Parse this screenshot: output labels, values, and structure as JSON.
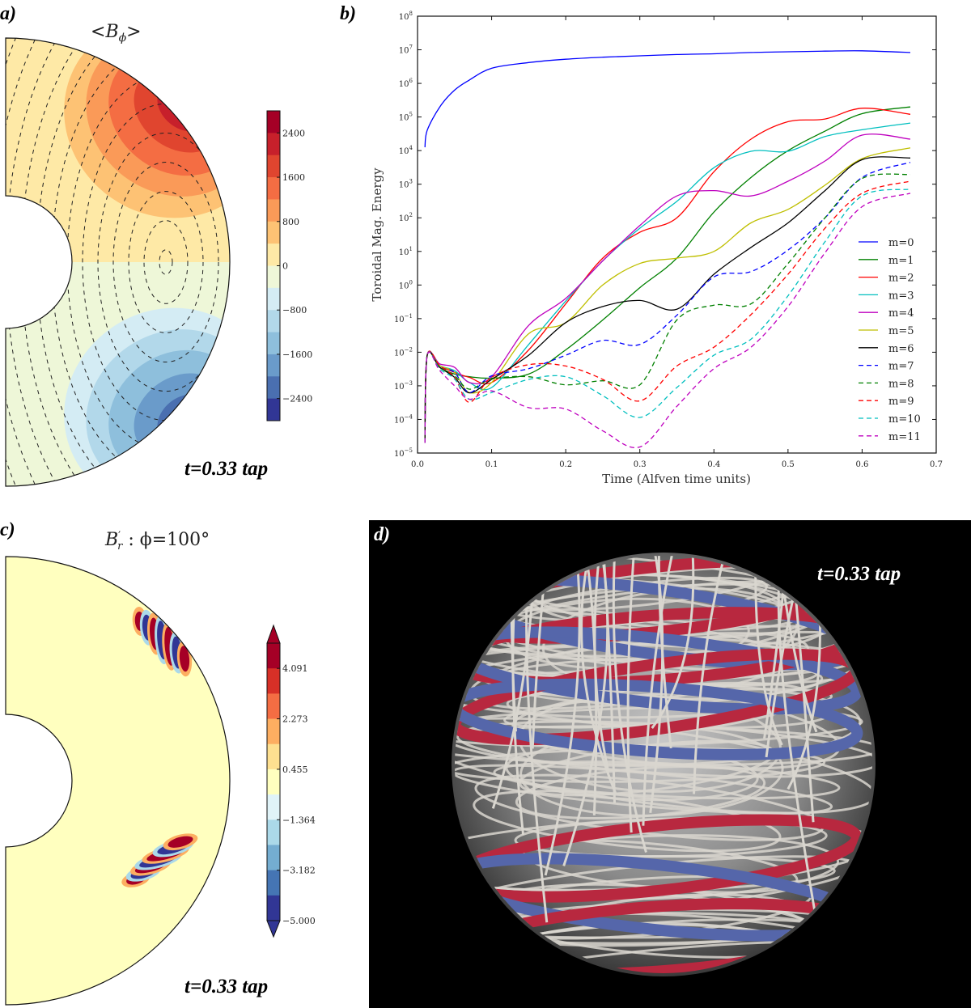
{
  "panel_a": {
    "label": "a)",
    "title": {
      "open": "<",
      "symbol": "B",
      "subscript": "ϕ",
      "close": ">"
    },
    "time_label": "t=0.33 tap",
    "colorbar": {
      "ticks": [
        "2400",
        "1600",
        "800",
        "0",
        "−800",
        "−1600",
        "−2400"
      ],
      "range": [
        -2800,
        2800
      ],
      "levels": 14
    }
  },
  "panel_c": {
    "label": "c)",
    "title": {
      "symbol": "B",
      "superscript": "′",
      "subscript": "r",
      "text": " : ϕ=100°"
    },
    "time_label": "t=0.33 tap",
    "colorbar": {
      "ticks": [
        "4.091",
        "2.273",
        "0.455",
        "−1.364",
        "−3.182",
        "−5.000"
      ],
      "range": [
        -5.0,
        5.0
      ],
      "levels": 11,
      "extend": "both"
    }
  },
  "panel_d": {
    "label": "d)",
    "time_label": "t=0.33 tap",
    "colors": {
      "positive": "#b8283f",
      "negative": "#5566aa",
      "field_lines": "#d9d6cf",
      "background": "#000000"
    }
  },
  "chart_data": {
    "panel_label": "b)",
    "type": "line",
    "title": "",
    "xlabel": "Time (Alfven time units)",
    "ylabel": "Toroidal Mag. Energy",
    "xlim": [
      0.0,
      0.7
    ],
    "yscale": "log",
    "ylim_log10": [
      -5,
      8
    ],
    "xticks": [
      "0.0",
      "0.1",
      "0.2",
      "0.3",
      "0.4",
      "0.5",
      "0.6",
      "0.7"
    ],
    "ytick_exponents": [
      "−5",
      "−4",
      "−3",
      "−2",
      "−1",
      "0",
      "1",
      "2",
      "3",
      "4",
      "5",
      "6",
      "7",
      "8"
    ],
    "ytick_base": "10",
    "legend_position": "lower-right",
    "grid": false,
    "t": [
      0.01,
      0.013,
      0.03,
      0.05,
      0.07,
      0.1,
      0.15,
      0.2,
      0.25,
      0.3,
      0.35,
      0.4,
      0.45,
      0.5,
      0.55,
      0.6,
      0.665
    ],
    "series": [
      {
        "name": "m=0",
        "color": "#0000ff",
        "dash": false,
        "log10_values": [
          4.1,
          4.6,
          5.3,
          5.8,
          6.1,
          6.45,
          6.62,
          6.72,
          6.78,
          6.82,
          6.86,
          6.88,
          6.92,
          6.94,
          6.96,
          6.97,
          6.92
        ]
      },
      {
        "name": "m=1",
        "color": "#008000",
        "dash": false,
        "log10_values": [
          -4.7,
          -2.1,
          -2.45,
          -2.65,
          -2.73,
          -2.77,
          -2.65,
          -1.93,
          -1.04,
          -0.08,
          0.8,
          2.17,
          3.2,
          4.0,
          4.58,
          5.1,
          5.3
        ]
      },
      {
        "name": "m=2",
        "color": "#ff0000",
        "dash": false,
        "log10_values": [
          -4.7,
          -2.1,
          -2.4,
          -2.6,
          -2.75,
          -2.9,
          -1.93,
          -0.56,
          0.8,
          1.57,
          2.0,
          3.37,
          4.34,
          4.86,
          4.94,
          5.26,
          5.08
        ]
      },
      {
        "name": "m=3",
        "color": "#00bfbf",
        "dash": false,
        "log10_values": [
          -4.7,
          -2.1,
          -2.4,
          -2.55,
          -2.9,
          -3.05,
          -1.77,
          -0.48,
          0.72,
          1.69,
          2.49,
          3.49,
          3.98,
          3.98,
          4.42,
          4.62,
          4.82
        ]
      },
      {
        "name": "m=4",
        "color": "#bf00bf",
        "dash": false,
        "log10_values": [
          -4.7,
          -2.1,
          -2.35,
          -2.45,
          -2.9,
          -2.73,
          -1.2,
          -0.4,
          0.72,
          1.77,
          2.65,
          2.81,
          2.65,
          3.09,
          3.69,
          4.46,
          4.34
        ]
      },
      {
        "name": "m=5",
        "color": "#bfbf00",
        "dash": false,
        "log10_values": [
          -4.7,
          -2.1,
          -2.4,
          -2.6,
          -3.2,
          -2.9,
          -1.45,
          -1.12,
          0.0,
          0.64,
          0.8,
          1.0,
          1.85,
          2.25,
          2.97,
          3.76,
          4.08
        ]
      },
      {
        "name": "m=6",
        "color": "#000000",
        "dash": false,
        "log10_values": [
          -4.7,
          -2.1,
          -2.45,
          -2.75,
          -3.21,
          -2.81,
          -2.09,
          -1.12,
          -0.64,
          -0.46,
          -0.72,
          0.32,
          1.12,
          1.85,
          2.81,
          3.73,
          3.78
        ]
      },
      {
        "name": "m=7",
        "color": "#0000ff",
        "dash": true,
        "log10_values": [
          -4.7,
          -2.1,
          -2.45,
          -2.6,
          -3.2,
          -2.7,
          -2.49,
          -2.09,
          -1.65,
          -1.77,
          -0.9,
          0.24,
          0.4,
          1.04,
          2.0,
          3.2,
          3.65
        ]
      },
      {
        "name": "m=8",
        "color": "#008000",
        "dash": true,
        "log10_values": [
          -4.7,
          -2.1,
          -2.45,
          -2.7,
          -3.1,
          -2.8,
          -2.73,
          -2.97,
          -2.85,
          -2.97,
          -1.04,
          -0.6,
          -0.56,
          0.64,
          2.0,
          3.17,
          3.29
        ]
      },
      {
        "name": "m=9",
        "color": "#ff0000",
        "dash": true,
        "log10_values": [
          -4.7,
          -2.1,
          -2.4,
          -2.75,
          -3.49,
          -2.75,
          -2.37,
          -2.41,
          -2.81,
          -3.45,
          -2.41,
          -1.85,
          -0.88,
          0.32,
          1.69,
          2.73,
          3.09
        ]
      },
      {
        "name": "m=10",
        "color": "#00bfbf",
        "dash": true,
        "log10_values": [
          -4.7,
          -2.1,
          -2.5,
          -2.8,
          -3.4,
          -3.2,
          -2.81,
          -2.73,
          -3.29,
          -3.94,
          -3.05,
          -2.09,
          -1.61,
          -0.32,
          1.29,
          2.65,
          2.85
        ]
      },
      {
        "name": "m=11",
        "color": "#bf00bf",
        "dash": true,
        "log10_values": [
          -4.7,
          -2.1,
          -2.55,
          -3.0,
          -3.4,
          -3.15,
          -3.65,
          -3.69,
          -4.34,
          -4.82,
          -3.61,
          -2.49,
          -1.85,
          -0.64,
          0.96,
          2.33,
          2.73
        ]
      }
    ]
  }
}
